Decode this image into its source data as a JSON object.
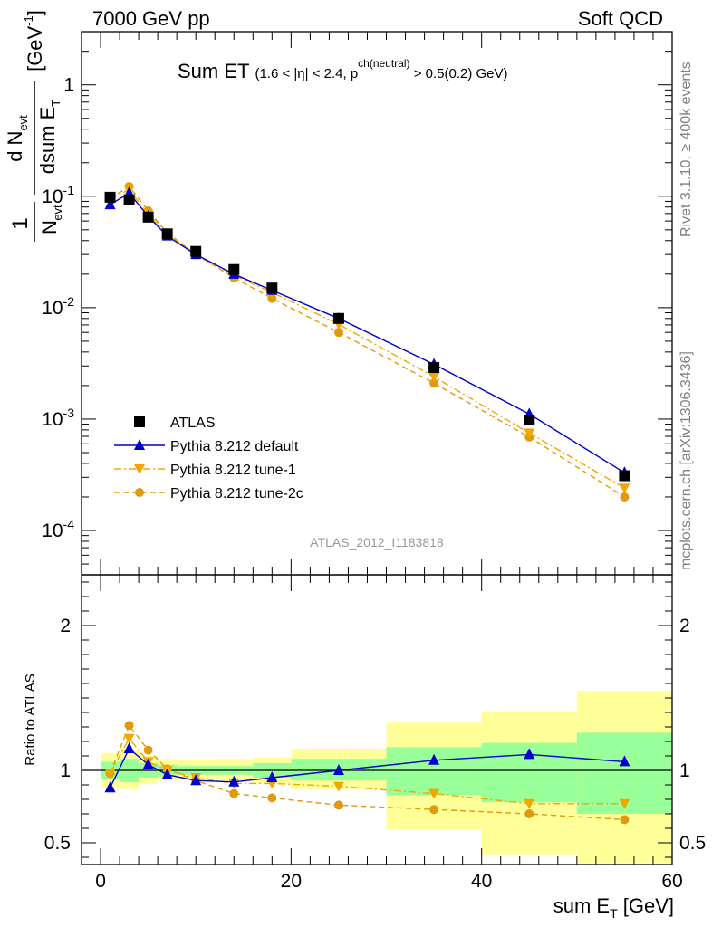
{
  "header": {
    "left": "7000 GeV pp",
    "right": "Soft QCD"
  },
  "side": {
    "rivet": "Rivet 3.1.10, ≥ 400k events",
    "mcplots": "mcplots.cern.ch [arXiv:1306.3436]"
  },
  "plot": {
    "title_main": "Sum ET",
    "title_cond_a": "(1.6 < |η| < 2.4, p",
    "title_cond_sup": "ch(neutral)",
    "title_cond_b": " > 0.5(0.2) GeV)",
    "analysis_id": "ATLAS_2012_I1183818"
  },
  "chart_data": [
    {
      "type": "scatter",
      "ylabel": "1/N_evt dN_evt/dsum E_T [GeV^-1]",
      "xlim": [
        -2,
        60
      ],
      "ylim": [
        4e-05,
        3
      ],
      "yscale": "log",
      "yticks": [
        {
          "value": 1,
          "label": "1"
        },
        {
          "value": 0.1,
          "label": "10^-1"
        },
        {
          "value": 0.01,
          "label": "10^-2"
        },
        {
          "value": 0.001,
          "label": "10^-3"
        },
        {
          "value": 0.0001,
          "label": "10^-4"
        }
      ],
      "legend_position": "bottom-left",
      "x": [
        1,
        3,
        5,
        7,
        10,
        14,
        18,
        25,
        35,
        45,
        55
      ],
      "series": [
        {
          "name": "ATLAS",
          "color": "#000000",
          "marker": "square",
          "values": [
            0.098,
            0.093,
            0.065,
            0.046,
            0.032,
            0.022,
            0.015,
            0.008,
            0.0029,
            0.00098,
            0.00031
          ]
        },
        {
          "name": "Pythia 8.212 default",
          "color": "#0000cc",
          "marker": "triangle-up",
          "line": "solid",
          "values": [
            0.084,
            0.107,
            0.066,
            0.044,
            0.03,
            0.02,
            0.0143,
            0.008,
            0.0031,
            0.00111,
            0.00033
          ]
        },
        {
          "name": "Pythia 8.212 tune-1",
          "color": "#f0a800",
          "marker": "triangle-down",
          "line": "dashdot",
          "values": [
            0.096,
            0.114,
            0.069,
            0.046,
            0.03,
            0.0196,
            0.0137,
            0.0071,
            0.0024,
            0.00075,
            0.00024
          ]
        },
        {
          "name": "Pythia 8.212 tune-2c",
          "color": "#e09a10",
          "marker": "circle",
          "line": "dashed",
          "values": [
            0.096,
            0.122,
            0.074,
            0.047,
            0.03,
            0.0186,
            0.0121,
            0.006,
            0.0021,
            0.00069,
            0.0002
          ]
        }
      ]
    },
    {
      "type": "scatter",
      "xlabel": "sum E_T [GeV]",
      "ylabel": "Ratio to ATLAS",
      "xlim": [
        -2,
        60
      ],
      "ylim": [
        0.35,
        2.35
      ],
      "xticks": [
        0,
        20,
        40,
        60
      ],
      "yticks": [
        0.5,
        1,
        2
      ],
      "bins": [
        [
          0,
          2
        ],
        [
          2,
          4
        ],
        [
          4,
          6
        ],
        [
          6,
          8
        ],
        [
          8,
          12
        ],
        [
          12,
          16
        ],
        [
          16,
          20
        ],
        [
          20,
          30
        ],
        [
          30,
          40
        ],
        [
          40,
          50
        ],
        [
          50,
          60
        ]
      ],
      "band_inner": [
        [
          0.94,
          1.06
        ],
        [
          0.92,
          1.08
        ],
        [
          0.95,
          1.05
        ],
        [
          0.96,
          1.04
        ],
        [
          0.97,
          1.03
        ],
        [
          0.97,
          1.03
        ],
        [
          0.95,
          1.05
        ],
        [
          0.93,
          1.08
        ],
        [
          0.83,
          1.16
        ],
        [
          0.78,
          1.19
        ],
        [
          0.7,
          1.26
        ]
      ],
      "band_outer": [
        [
          0.88,
          1.12
        ],
        [
          0.87,
          1.14
        ],
        [
          0.91,
          1.1
        ],
        [
          0.93,
          1.08
        ],
        [
          0.94,
          1.07
        ],
        [
          0.93,
          1.08
        ],
        [
          0.91,
          1.09
        ],
        [
          0.87,
          1.15
        ],
        [
          0.59,
          1.33
        ],
        [
          0.42,
          1.4
        ],
        [
          0.36,
          1.55
        ]
      ],
      "series": [
        {
          "name": "Pythia 8.212 default",
          "color": "#0000cc",
          "marker": "triangle-up",
          "line": "solid",
          "values": [
            0.88,
            1.15,
            1.04,
            0.97,
            0.93,
            0.92,
            0.95,
            1.0,
            1.07,
            1.11,
            1.06
          ]
        },
        {
          "name": "Pythia 8.212 tune-1",
          "color": "#f0a800",
          "marker": "triangle-down",
          "line": "dashdot",
          "values": [
            0.98,
            1.22,
            1.06,
            1.0,
            0.95,
            0.91,
            0.91,
            0.89,
            0.84,
            0.77,
            0.77
          ]
        },
        {
          "name": "Pythia 8.212 tune-2c",
          "color": "#e09a10",
          "marker": "circle",
          "line": "dashed",
          "values": [
            0.98,
            1.31,
            1.14,
            1.01,
            0.93,
            0.84,
            0.81,
            0.76,
            0.73,
            0.7,
            0.66
          ]
        }
      ]
    }
  ]
}
